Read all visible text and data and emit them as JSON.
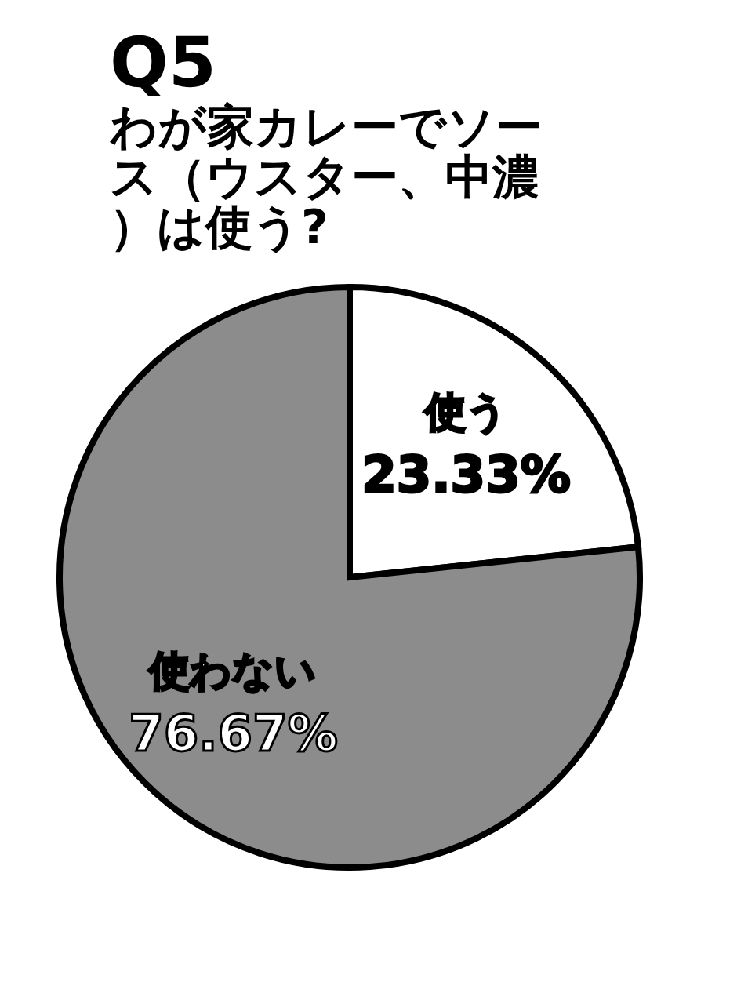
{
  "chart_data": {
    "type": "pie",
    "title": "Q5",
    "subtitle": "わが家カレーでソース（ウスター、中濃）は使う?",
    "categories": [
      "使う",
      "使わない"
    ],
    "values": [
      23.33,
      76.67
    ],
    "value_labels": [
      "23.33%",
      "76.67%"
    ],
    "colors": [
      "#ffffff",
      "#8c8c8c"
    ],
    "legend": false
  }
}
